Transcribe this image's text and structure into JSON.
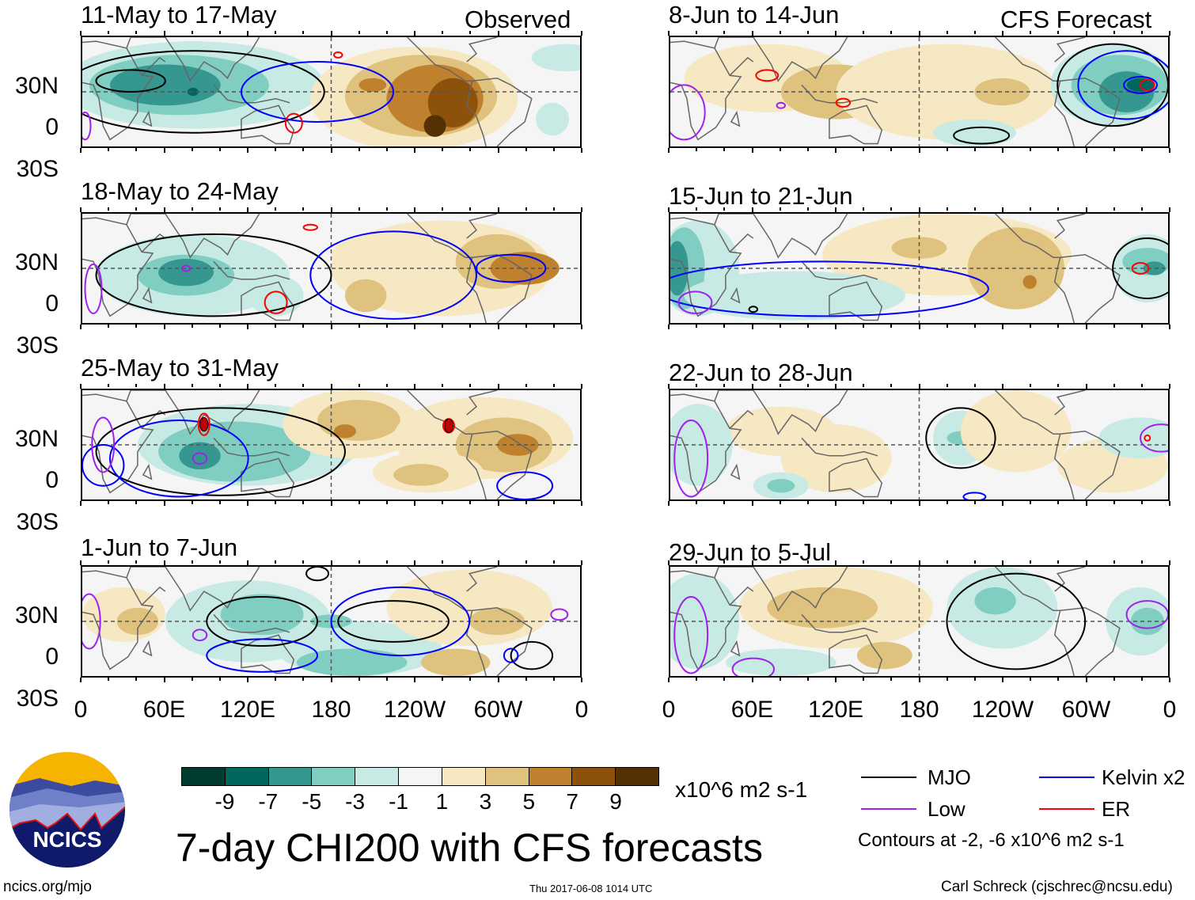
{
  "figure": {
    "title": "7-day CHI200 with CFS forecasts",
    "observed_label": "Observed",
    "forecast_label": "CFS Forecast",
    "units": "x10^6 m2 s-1",
    "contour_note": "Contours at -2, -6 x10^6 m2 s-1",
    "website": "ncics.org/mjo",
    "timestamp": "Thu 2017-06-08 1014 UTC",
    "author": "Carl Schreck (cjschrec@ncsu.edu)",
    "logo_text": "NCICS"
  },
  "axes": {
    "lat_labels": [
      "30N",
      "0",
      "30S"
    ],
    "lon_labels": [
      "0",
      "60E",
      "120E",
      "180",
      "120W",
      "60W",
      "0"
    ]
  },
  "panels": [
    {
      "title": "11-May to 17-May",
      "kind": "observed"
    },
    {
      "title": "18-May to 24-May",
      "kind": "observed"
    },
    {
      "title": "25-May to 31-May",
      "kind": "observed"
    },
    {
      "title": "1-Jun to 7-Jun",
      "kind": "observed"
    },
    {
      "title": "8-Jun to 14-Jun",
      "kind": "forecast"
    },
    {
      "title": "15-Jun to 21-Jun",
      "kind": "forecast"
    },
    {
      "title": "22-Jun to 28-Jun",
      "kind": "forecast"
    },
    {
      "title": "29-Jun to 5-Jul",
      "kind": "forecast"
    }
  ],
  "colorbar": {
    "labels": [
      "-9",
      "-7",
      "-5",
      "-3",
      "-1",
      "1",
      "3",
      "5",
      "7",
      "9"
    ],
    "colors": [
      "#003c30",
      "#01665e",
      "#35978f",
      "#80cdc1",
      "#c7eae5",
      "#f5f5f5",
      "#f6e8c3",
      "#dfc27d",
      "#bf812d",
      "#8c510a",
      "#543005"
    ]
  },
  "legend": [
    {
      "label": "MJO",
      "color": "#000000"
    },
    {
      "label": "Kelvin x2",
      "color": "#0000ff"
    },
    {
      "label": "Low",
      "color": "#a020f0"
    },
    {
      "label": "ER",
      "color": "#ff0000"
    }
  ]
}
